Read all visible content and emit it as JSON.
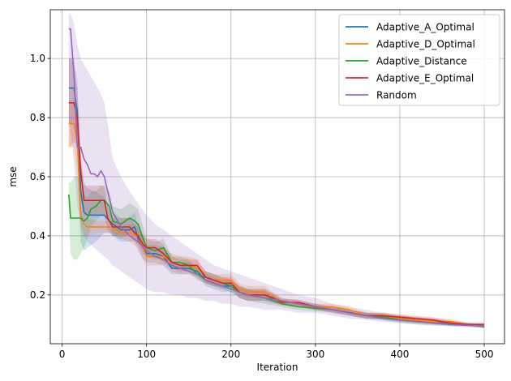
{
  "chart_data": {
    "type": "line",
    "xlabel": "Iteration",
    "ylabel": "mse",
    "xlim": [
      -14,
      524
    ],
    "ylim": [
      0.035,
      1.165
    ],
    "xticks": [
      0,
      100,
      200,
      300,
      400,
      500
    ],
    "xtick_labels": [
      "0",
      "100",
      "200",
      "300",
      "400",
      "500"
    ],
    "yticks": [
      0.2,
      0.4,
      0.6,
      0.8,
      1.0
    ],
    "ytick_labels": [
      "0.2",
      "0.4",
      "0.6",
      "0.8",
      "1.0"
    ],
    "grid": true,
    "legend_position": "top-right",
    "series": [
      {
        "name": "Adaptive_A_Optimal",
        "color": "#1f77b4",
        "x": [
          8,
          10,
          14,
          18,
          22,
          26,
          30,
          40,
          50,
          56,
          60,
          70,
          80,
          86,
          90,
          96,
          100,
          110,
          120,
          130,
          140,
          150,
          160,
          170,
          180,
          190,
          200,
          210,
          220,
          240,
          260,
          280,
          300,
          320,
          340,
          360,
          380,
          400,
          420,
          440,
          460,
          480,
          500
        ],
        "y": [
          0.9,
          0.9,
          0.9,
          0.82,
          0.55,
          0.48,
          0.47,
          0.47,
          0.47,
          0.45,
          0.44,
          0.42,
          0.42,
          0.43,
          0.39,
          0.36,
          0.34,
          0.34,
          0.33,
          0.29,
          0.29,
          0.29,
          0.28,
          0.25,
          0.24,
          0.23,
          0.23,
          0.21,
          0.2,
          0.2,
          0.18,
          0.17,
          0.16,
          0.15,
          0.14,
          0.13,
          0.125,
          0.12,
          0.115,
          0.11,
          0.105,
          0.1,
          0.093
        ],
        "lower": [
          0.78,
          0.78,
          0.78,
          0.7,
          0.38,
          0.35,
          0.36,
          0.38,
          0.41,
          0.41,
          0.4,
          0.38,
          0.38,
          0.38,
          0.35,
          0.32,
          0.31,
          0.31,
          0.3,
          0.27,
          0.27,
          0.27,
          0.26,
          0.23,
          0.22,
          0.21,
          0.21,
          0.19,
          0.18,
          0.18,
          0.17,
          0.16,
          0.15,
          0.14,
          0.13,
          0.12,
          0.115,
          0.11,
          0.105,
          0.1,
          0.097,
          0.094,
          0.088
        ],
        "upper": [
          1.0,
          1.0,
          1.0,
          0.92,
          0.65,
          0.58,
          0.56,
          0.55,
          0.53,
          0.49,
          0.48,
          0.46,
          0.46,
          0.48,
          0.43,
          0.4,
          0.37,
          0.37,
          0.36,
          0.31,
          0.31,
          0.31,
          0.3,
          0.27,
          0.26,
          0.25,
          0.25,
          0.23,
          0.22,
          0.22,
          0.19,
          0.18,
          0.17,
          0.16,
          0.15,
          0.14,
          0.135,
          0.13,
          0.125,
          0.12,
          0.113,
          0.106,
          0.098
        ]
      },
      {
        "name": "Adaptive_D_Optimal",
        "color": "#ff7f0e",
        "x": [
          8,
          10,
          14,
          18,
          22,
          26,
          30,
          40,
          50,
          60,
          70,
          80,
          90,
          96,
          100,
          110,
          120,
          130,
          140,
          150,
          160,
          170,
          180,
          190,
          200,
          210,
          220,
          240,
          260,
          280,
          300,
          320,
          340,
          360,
          380,
          400,
          420,
          440,
          460,
          480,
          500
        ],
        "y": [
          0.78,
          0.78,
          0.78,
          0.72,
          0.47,
          0.44,
          0.43,
          0.43,
          0.43,
          0.43,
          0.41,
          0.41,
          0.4,
          0.36,
          0.33,
          0.33,
          0.33,
          0.31,
          0.3,
          0.3,
          0.29,
          0.26,
          0.25,
          0.25,
          0.25,
          0.22,
          0.21,
          0.21,
          0.18,
          0.17,
          0.16,
          0.16,
          0.15,
          0.13,
          0.13,
          0.12,
          0.115,
          0.11,
          0.11,
          0.1,
          0.1
        ],
        "lower": [
          0.7,
          0.7,
          0.7,
          0.6,
          0.42,
          0.4,
          0.4,
          0.41,
          0.41,
          0.41,
          0.39,
          0.38,
          0.36,
          0.32,
          0.3,
          0.3,
          0.3,
          0.28,
          0.27,
          0.27,
          0.26,
          0.24,
          0.23,
          0.23,
          0.23,
          0.2,
          0.19,
          0.19,
          0.17,
          0.16,
          0.15,
          0.15,
          0.14,
          0.12,
          0.12,
          0.11,
          0.105,
          0.1,
          0.1,
          0.095,
          0.095
        ],
        "upper": [
          0.86,
          0.86,
          0.86,
          0.84,
          0.53,
          0.48,
          0.46,
          0.45,
          0.45,
          0.45,
          0.43,
          0.44,
          0.44,
          0.4,
          0.36,
          0.36,
          0.36,
          0.34,
          0.33,
          0.33,
          0.32,
          0.28,
          0.27,
          0.27,
          0.27,
          0.24,
          0.23,
          0.23,
          0.19,
          0.18,
          0.17,
          0.17,
          0.16,
          0.14,
          0.14,
          0.13,
          0.125,
          0.12,
          0.12,
          0.105,
          0.105
        ]
      },
      {
        "name": "Adaptive_Distance",
        "color": "#2ca02c",
        "x": [
          8,
          10,
          14,
          18,
          22,
          26,
          30,
          34,
          40,
          46,
          50,
          56,
          60,
          70,
          80,
          86,
          90,
          96,
          100,
          110,
          120,
          130,
          140,
          150,
          160,
          170,
          180,
          190,
          200,
          210,
          220,
          240,
          260,
          280,
          300,
          320,
          340,
          360,
          380,
          400,
          420,
          440,
          460,
          480,
          500
        ],
        "y": [
          0.54,
          0.46,
          0.46,
          0.46,
          0.46,
          0.45,
          0.46,
          0.49,
          0.5,
          0.52,
          0.52,
          0.5,
          0.45,
          0.44,
          0.46,
          0.45,
          0.44,
          0.39,
          0.36,
          0.35,
          0.36,
          0.31,
          0.31,
          0.3,
          0.27,
          0.26,
          0.25,
          0.24,
          0.23,
          0.21,
          0.2,
          0.19,
          0.17,
          0.16,
          0.155,
          0.15,
          0.14,
          0.13,
          0.125,
          0.115,
          0.11,
          0.105,
          0.1,
          0.1,
          0.093
        ],
        "lower": [
          0.5,
          0.34,
          0.32,
          0.32,
          0.34,
          0.36,
          0.39,
          0.43,
          0.45,
          0.47,
          0.47,
          0.45,
          0.4,
          0.39,
          0.41,
          0.4,
          0.39,
          0.35,
          0.33,
          0.32,
          0.33,
          0.29,
          0.29,
          0.28,
          0.25,
          0.24,
          0.23,
          0.22,
          0.21,
          0.19,
          0.18,
          0.17,
          0.16,
          0.15,
          0.145,
          0.14,
          0.13,
          0.12,
          0.115,
          0.105,
          0.1,
          0.097,
          0.094,
          0.094,
          0.088
        ],
        "upper": [
          0.58,
          0.58,
          0.6,
          0.6,
          0.58,
          0.54,
          0.53,
          0.55,
          0.55,
          0.57,
          0.57,
          0.55,
          0.5,
          0.49,
          0.51,
          0.5,
          0.49,
          0.43,
          0.39,
          0.38,
          0.39,
          0.33,
          0.33,
          0.32,
          0.29,
          0.28,
          0.27,
          0.26,
          0.25,
          0.23,
          0.22,
          0.21,
          0.18,
          0.17,
          0.165,
          0.16,
          0.15,
          0.14,
          0.135,
          0.125,
          0.12,
          0.113,
          0.106,
          0.106,
          0.098
        ]
      },
      {
        "name": "Adaptive_E_Optimal",
        "color": "#d62728",
        "x": [
          8,
          10,
          14,
          18,
          22,
          26,
          30,
          40,
          50,
          54,
          60,
          70,
          80,
          86,
          90,
          96,
          100,
          110,
          120,
          130,
          140,
          150,
          160,
          170,
          180,
          190,
          200,
          210,
          220,
          240,
          260,
          280,
          300,
          320,
          340,
          360,
          380,
          400,
          420,
          440,
          460,
          480,
          500
        ],
        "y": [
          0.85,
          0.85,
          0.85,
          0.8,
          0.62,
          0.52,
          0.52,
          0.52,
          0.52,
          0.46,
          0.43,
          0.43,
          0.43,
          0.41,
          0.4,
          0.37,
          0.36,
          0.36,
          0.34,
          0.31,
          0.3,
          0.3,
          0.3,
          0.26,
          0.25,
          0.24,
          0.24,
          0.21,
          0.2,
          0.2,
          0.175,
          0.175,
          0.16,
          0.15,
          0.14,
          0.13,
          0.13,
          0.125,
          0.12,
          0.115,
          0.105,
          0.1,
          0.1
        ],
        "lower": [
          0.7,
          0.7,
          0.72,
          0.7,
          0.55,
          0.47,
          0.47,
          0.47,
          0.47,
          0.42,
          0.4,
          0.4,
          0.4,
          0.38,
          0.37,
          0.34,
          0.33,
          0.33,
          0.31,
          0.29,
          0.28,
          0.28,
          0.28,
          0.24,
          0.23,
          0.22,
          0.22,
          0.19,
          0.18,
          0.18,
          0.165,
          0.165,
          0.15,
          0.14,
          0.13,
          0.12,
          0.12,
          0.115,
          0.11,
          0.105,
          0.097,
          0.094,
          0.094
        ],
        "upper": [
          1.0,
          1.0,
          0.98,
          0.9,
          0.69,
          0.57,
          0.57,
          0.57,
          0.57,
          0.5,
          0.46,
          0.46,
          0.46,
          0.44,
          0.43,
          0.4,
          0.39,
          0.39,
          0.37,
          0.33,
          0.32,
          0.32,
          0.32,
          0.28,
          0.27,
          0.26,
          0.26,
          0.23,
          0.22,
          0.22,
          0.185,
          0.185,
          0.17,
          0.16,
          0.15,
          0.14,
          0.14,
          0.135,
          0.13,
          0.125,
          0.113,
          0.106,
          0.106
        ]
      },
      {
        "name": "Random",
        "color": "#9467bd",
        "x": [
          8,
          10,
          14,
          18,
          22,
          26,
          30,
          34,
          38,
          42,
          46,
          50,
          54,
          60,
          70,
          80,
          90,
          100,
          110,
          120,
          130,
          140,
          150,
          160,
          170,
          180,
          190,
          200,
          210,
          220,
          240,
          260,
          280,
          300,
          320,
          340,
          360,
          380,
          400,
          420,
          440,
          460,
          480,
          500
        ],
        "y": [
          1.1,
          1.1,
          0.95,
          0.7,
          0.7,
          0.66,
          0.64,
          0.61,
          0.61,
          0.6,
          0.62,
          0.6,
          0.55,
          0.48,
          0.43,
          0.4,
          0.38,
          0.35,
          0.33,
          0.32,
          0.3,
          0.29,
          0.28,
          0.27,
          0.25,
          0.24,
          0.23,
          0.22,
          0.21,
          0.2,
          0.19,
          0.18,
          0.17,
          0.16,
          0.15,
          0.14,
          0.13,
          0.12,
          0.115,
          0.11,
          0.105,
          0.1,
          0.097,
          0.095
        ],
        "lower": [
          0.8,
          0.75,
          0.65,
          0.5,
          0.44,
          0.4,
          0.38,
          0.37,
          0.36,
          0.35,
          0.34,
          0.33,
          0.32,
          0.3,
          0.28,
          0.26,
          0.24,
          0.22,
          0.21,
          0.21,
          0.2,
          0.2,
          0.19,
          0.19,
          0.18,
          0.18,
          0.17,
          0.17,
          0.16,
          0.16,
          0.15,
          0.15,
          0.14,
          0.14,
          0.13,
          0.12,
          0.115,
          0.11,
          0.105,
          0.1,
          0.097,
          0.094,
          0.091,
          0.089
        ],
        "upper": [
          1.15,
          1.15,
          1.12,
          1.05,
          1.0,
          0.98,
          0.96,
          0.94,
          0.92,
          0.9,
          0.88,
          0.85,
          0.78,
          0.66,
          0.6,
          0.55,
          0.51,
          0.47,
          0.44,
          0.42,
          0.4,
          0.38,
          0.36,
          0.34,
          0.32,
          0.3,
          0.29,
          0.28,
          0.27,
          0.26,
          0.24,
          0.22,
          0.2,
          0.19,
          0.17,
          0.16,
          0.15,
          0.14,
          0.13,
          0.125,
          0.115,
          0.108,
          0.103,
          0.101
        ]
      }
    ]
  }
}
